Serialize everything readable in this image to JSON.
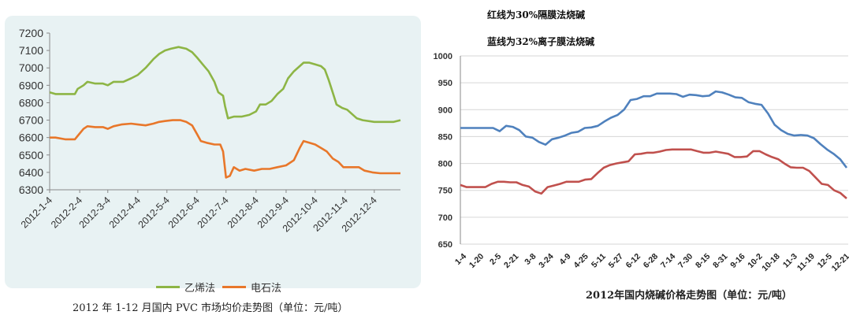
{
  "chart_data": [
    {
      "type": "line",
      "caption": "2012 年 1-12 月国内 PVC 市场均价走势图（单位：元/吨）",
      "x_tick_labels": [
        "2012-1-4",
        "2012-2-4",
        "2012-3-4",
        "2012-4-4",
        "2012-5-4",
        "2012-6-4",
        "2012-7-4",
        "2012-8-4",
        "2012-9-4",
        "2012-10-4",
        "2012-11-4",
        "2012-12-4"
      ],
      "y_tick_labels": [
        "6300",
        "6400",
        "6500",
        "6600",
        "6700",
        "6800",
        "6900",
        "7000",
        "7100",
        "7200"
      ],
      "ylim": [
        6300,
        7200
      ],
      "legend_position": "bottom",
      "grid": false,
      "series": [
        {
          "name": "乙烯法",
          "color": "#8db545",
          "points": [
            [
              "2012-01-04",
              6860
            ],
            [
              "2012-01-10",
              6850
            ],
            [
              "2012-01-18",
              6850
            ],
            [
              "2012-01-30",
              6850
            ],
            [
              "2012-02-02",
              6880
            ],
            [
              "2012-02-08",
              6900
            ],
            [
              "2012-02-12",
              6920
            ],
            [
              "2012-02-20",
              6910
            ],
            [
              "2012-02-28",
              6910
            ],
            [
              "2012-03-04",
              6900
            ],
            [
              "2012-03-10",
              6920
            ],
            [
              "2012-03-20",
              6920
            ],
            [
              "2012-03-28",
              6940
            ],
            [
              "2012-04-04",
              6960
            ],
            [
              "2012-04-12",
              7000
            ],
            [
              "2012-04-20",
              7050
            ],
            [
              "2012-04-26",
              7080
            ],
            [
              "2012-05-02",
              7100
            ],
            [
              "2012-05-08",
              7110
            ],
            [
              "2012-05-16",
              7120
            ],
            [
              "2012-05-24",
              7110
            ],
            [
              "2012-05-30",
              7090
            ],
            [
              "2012-06-04",
              7060
            ],
            [
              "2012-06-10",
              7020
            ],
            [
              "2012-06-16",
              6980
            ],
            [
              "2012-06-22",
              6920
            ],
            [
              "2012-06-26",
              6860
            ],
            [
              "2012-07-01",
              6840
            ],
            [
              "2012-07-03",
              6780
            ],
            [
              "2012-07-06",
              6710
            ],
            [
              "2012-07-12",
              6720
            ],
            [
              "2012-07-20",
              6720
            ],
            [
              "2012-07-28",
              6730
            ],
            [
              "2012-08-04",
              6750
            ],
            [
              "2012-08-08",
              6790
            ],
            [
              "2012-08-14",
              6790
            ],
            [
              "2012-08-20",
              6810
            ],
            [
              "2012-08-26",
              6850
            ],
            [
              "2012-09-01",
              6880
            ],
            [
              "2012-09-06",
              6940
            ],
            [
              "2012-09-12",
              6980
            ],
            [
              "2012-09-18",
              7010
            ],
            [
              "2012-09-22",
              7030
            ],
            [
              "2012-09-28",
              7030
            ],
            [
              "2012-10-04",
              7020
            ],
            [
              "2012-10-10",
              7010
            ],
            [
              "2012-10-14",
              6990
            ],
            [
              "2012-10-18",
              6930
            ],
            [
              "2012-10-22",
              6860
            ],
            [
              "2012-10-26",
              6790
            ],
            [
              "2012-11-01",
              6770
            ],
            [
              "2012-11-06",
              6760
            ],
            [
              "2012-11-10",
              6740
            ],
            [
              "2012-11-16",
              6710
            ],
            [
              "2012-11-22",
              6700
            ],
            [
              "2012-12-04",
              6690
            ],
            [
              "2012-12-14",
              6690
            ],
            [
              "2012-12-24",
              6690
            ],
            [
              "2012-12-31",
              6700
            ]
          ]
        },
        {
          "name": "电石法",
          "color": "#e8772a",
          "points": [
            [
              "2012-01-04",
              6600
            ],
            [
              "2012-01-10",
              6600
            ],
            [
              "2012-01-20",
              6590
            ],
            [
              "2012-01-30",
              6590
            ],
            [
              "2012-02-02",
              6610
            ],
            [
              "2012-02-08",
              6650
            ],
            [
              "2012-02-12",
              6665
            ],
            [
              "2012-02-20",
              6660
            ],
            [
              "2012-02-28",
              6660
            ],
            [
              "2012-03-04",
              6650
            ],
            [
              "2012-03-10",
              6665
            ],
            [
              "2012-03-18",
              6675
            ],
            [
              "2012-03-28",
              6680
            ],
            [
              "2012-04-04",
              6675
            ],
            [
              "2012-04-12",
              6670
            ],
            [
              "2012-04-20",
              6680
            ],
            [
              "2012-04-26",
              6690
            ],
            [
              "2012-05-02",
              6695
            ],
            [
              "2012-05-10",
              6700
            ],
            [
              "2012-05-18",
              6700
            ],
            [
              "2012-05-24",
              6690
            ],
            [
              "2012-05-30",
              6670
            ],
            [
              "2012-06-04",
              6620
            ],
            [
              "2012-06-08",
              6580
            ],
            [
              "2012-06-14",
              6570
            ],
            [
              "2012-06-22",
              6560
            ],
            [
              "2012-06-28",
              6560
            ],
            [
              "2012-07-01",
              6520
            ],
            [
              "2012-07-04",
              6370
            ],
            [
              "2012-07-08",
              6380
            ],
            [
              "2012-07-12",
              6430
            ],
            [
              "2012-07-18",
              6410
            ],
            [
              "2012-07-24",
              6420
            ],
            [
              "2012-08-02",
              6410
            ],
            [
              "2012-08-10",
              6420
            ],
            [
              "2012-08-18",
              6420
            ],
            [
              "2012-08-26",
              6430
            ],
            [
              "2012-09-04",
              6440
            ],
            [
              "2012-09-12",
              6470
            ],
            [
              "2012-09-18",
              6540
            ],
            [
              "2012-09-22",
              6580
            ],
            [
              "2012-09-28",
              6570
            ],
            [
              "2012-10-04",
              6560
            ],
            [
              "2012-10-10",
              6540
            ],
            [
              "2012-10-16",
              6520
            ],
            [
              "2012-10-22",
              6480
            ],
            [
              "2012-10-28",
              6460
            ],
            [
              "2012-11-02",
              6430
            ],
            [
              "2012-11-10",
              6430
            ],
            [
              "2012-11-18",
              6430
            ],
            [
              "2012-11-24",
              6410
            ],
            [
              "2012-12-02",
              6400
            ],
            [
              "2012-12-10",
              6395
            ],
            [
              "2012-12-20",
              6395
            ],
            [
              "2012-12-31",
              6395
            ]
          ]
        }
      ]
    },
    {
      "type": "line",
      "title_lines": [
        "红线为30%隔膜法烧碱",
        "蓝线为32%离子膜法烧碱"
      ],
      "caption": "2012年国内烧碱价格走势图（单位：元/吨）",
      "x_tick_labels": [
        "1-4",
        "1-20",
        "2-5",
        "2-21",
        "3-8",
        "3-24",
        "4-9",
        "4-25",
        "5-11",
        "5-27",
        "6-12",
        "6-28",
        "7-14",
        "7-30",
        "8-15",
        "8-31",
        "9-16",
        "10-2",
        "10-18",
        "11-3",
        "11-19",
        "12-5",
        "12-21"
      ],
      "y_tick_labels": [
        "650",
        "700",
        "750",
        "800",
        "850",
        "900",
        "950",
        "1000"
      ],
      "ylim": [
        650,
        1000
      ],
      "grid": true,
      "series": [
        {
          "name": "32%离子膜法烧碱",
          "color": "#4f81bd",
          "values": [
            866,
            866,
            866,
            866,
            866,
            866,
            860,
            870,
            868,
            862,
            850,
            848,
            840,
            835,
            845,
            848,
            852,
            857,
            859,
            866,
            867,
            870,
            878,
            885,
            890,
            900,
            918,
            920,
            925,
            925,
            930,
            930,
            930,
            929,
            924,
            928,
            927,
            925,
            926,
            934,
            932,
            928,
            923,
            922,
            914,
            911,
            909,
            893,
            872,
            862,
            855,
            852,
            853,
            852,
            847,
            836,
            826,
            818,
            808,
            792
          ]
        },
        {
          "name": "30%隔膜法烧碱",
          "color": "#c0504d",
          "values": [
            760,
            756,
            756,
            756,
            756,
            762,
            766,
            766,
            765,
            765,
            760,
            757,
            748,
            744,
            756,
            759,
            762,
            766,
            766,
            766,
            770,
            771,
            782,
            792,
            797,
            800,
            802,
            804,
            817,
            818,
            820,
            820,
            822,
            825,
            826,
            826,
            826,
            826,
            823,
            820,
            820,
            822,
            820,
            818,
            812,
            812,
            813,
            823,
            823,
            817,
            812,
            808,
            800,
            793,
            792,
            792,
            786,
            774,
            762,
            760,
            750,
            745,
            735
          ]
        }
      ]
    }
  ]
}
